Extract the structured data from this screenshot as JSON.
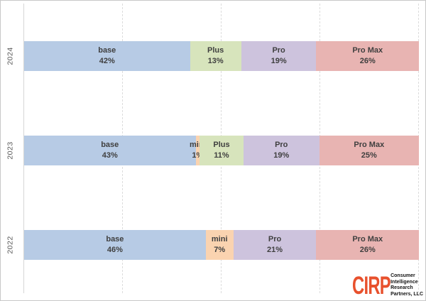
{
  "chart": {
    "years": [
      {
        "label": "2024",
        "segments": [
          {
            "name": "base",
            "pct": 42
          },
          {
            "name": "Plus",
            "pct": 13
          },
          {
            "name": "Pro",
            "pct": 19
          },
          {
            "name": "Pro Max",
            "pct": 26
          }
        ]
      },
      {
        "label": "2023",
        "segments": [
          {
            "name": "base",
            "pct": 43
          },
          {
            "name": "mini",
            "pct": 1
          },
          {
            "name": "Plus",
            "pct": 11
          },
          {
            "name": "Pro",
            "pct": 19
          },
          {
            "name": "Pro Max",
            "pct": 25
          }
        ]
      },
      {
        "label": "2022",
        "segments": [
          {
            "name": "base",
            "pct": 46
          },
          {
            "name": "mini",
            "pct": 7
          },
          {
            "name": "Pro",
            "pct": 21
          },
          {
            "name": "Pro Max",
            "pct": 26
          }
        ]
      }
    ],
    "colors": {
      "base": "#b7cbe5",
      "mini": "#fad3b0",
      "Plus": "#d7e4bc",
      "Pro": "#cdc3dd",
      "Pro Max": "#e8b4b2"
    },
    "gridlines_pct": [
      25,
      50,
      75,
      100
    ],
    "label_color": "#3f3f3f",
    "axis_label_color": "#595959"
  },
  "chart_data": {
    "type": "bar",
    "orientation": "horizontal-stacked",
    "categories": [
      "2024",
      "2023",
      "2022"
    ],
    "series": [
      {
        "name": "base",
        "values": [
          42,
          43,
          46
        ]
      },
      {
        "name": "mini",
        "values": [
          0,
          1,
          7
        ]
      },
      {
        "name": "Plus",
        "values": [
          13,
          11,
          0
        ]
      },
      {
        "name": "Pro",
        "values": [
          19,
          19,
          21
        ]
      },
      {
        "name": "Pro Max",
        "values": [
          26,
          25,
          26
        ]
      }
    ],
    "value_format": "percent",
    "xlim": [
      0,
      100
    ],
    "grid": "vertical dashed gridlines at 25, 50, 75, 100",
    "legend": "none",
    "title": "",
    "xlabel": "",
    "ylabel": ""
  },
  "logo": {
    "abbr": "CIRP",
    "lines": [
      "Consumer",
      "Intelligence",
      "Research",
      "Partners, LLC"
    ],
    "color": "#e8512d"
  }
}
